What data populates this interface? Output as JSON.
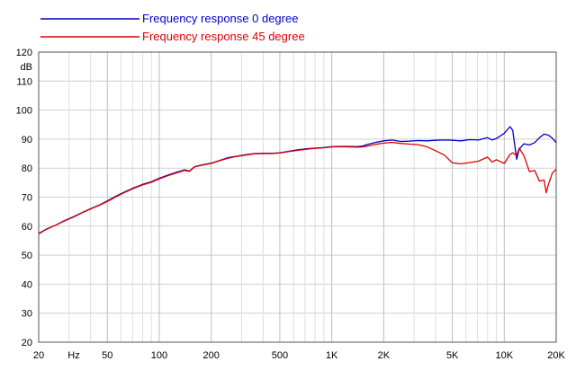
{
  "chart_data": {
    "type": "line",
    "xscale": "log",
    "xlim": [
      20,
      20000
    ],
    "ylim": [
      20,
      120
    ],
    "grid": true,
    "legend_position": "top-left",
    "ylabel": "dB",
    "xunit_label": "Hz",
    "x_major_ticks": [
      {
        "value": 20,
        "label": "20"
      },
      {
        "value": 50,
        "label": "50"
      },
      {
        "value": 100,
        "label": "100"
      },
      {
        "value": 200,
        "label": "200"
      },
      {
        "value": 500,
        "label": "500"
      },
      {
        "value": 1000,
        "label": "1K"
      },
      {
        "value": 2000,
        "label": "2K"
      },
      {
        "value": 5000,
        "label": "5K"
      },
      {
        "value": 10000,
        "label": "10K"
      },
      {
        "value": 20000,
        "label": "20K"
      }
    ],
    "x_minor_ticks": [
      30,
      40,
      60,
      70,
      80,
      90,
      300,
      400,
      600,
      700,
      800,
      900,
      3000,
      4000,
      6000,
      7000,
      8000,
      9000
    ],
    "y_ticks": [
      20,
      30,
      40,
      50,
      60,
      70,
      80,
      90,
      100,
      110,
      120
    ],
    "series": [
      {
        "name": "Frequency response 0 degree",
        "color": "#0000cc",
        "x": [
          20,
          22,
          25,
          28,
          32,
          36,
          40,
          45,
          50,
          56,
          63,
          71,
          80,
          90,
          100,
          112,
          125,
          140,
          150,
          160,
          180,
          200,
          225,
          250,
          280,
          315,
          355,
          400,
          450,
          500,
          560,
          630,
          710,
          800,
          900,
          1000,
          1120,
          1250,
          1400,
          1500,
          1600,
          1800,
          2000,
          2240,
          2500,
          2800,
          3150,
          3550,
          4000,
          4500,
          5000,
          5600,
          6300,
          7100,
          8000,
          8500,
          9000,
          10000,
          10800,
          11200,
          11800,
          12200,
          13000,
          14000,
          15000,
          16000,
          17000,
          18000,
          19000,
          20000
        ],
        "values": [
          57.5,
          58.9,
          60.3,
          61.8,
          63.3,
          64.8,
          66.0,
          67.3,
          68.7,
          70.3,
          71.8,
          73.2,
          74.4,
          75.3,
          76.5,
          77.6,
          78.5,
          79.4,
          79.0,
          80.5,
          81.2,
          81.7,
          82.7,
          83.6,
          84.1,
          84.6,
          85.0,
          85.1,
          85.1,
          85.3,
          85.8,
          86.3,
          86.7,
          86.9,
          87.1,
          87.4,
          87.5,
          87.5,
          87.4,
          87.6,
          88.1,
          88.9,
          89.4,
          89.7,
          89.2,
          89.3,
          89.5,
          89.4,
          89.6,
          89.7,
          89.6,
          89.4,
          89.8,
          89.7,
          90.5,
          89.7,
          90.2,
          92.0,
          94.3,
          93.0,
          83.0,
          86.5,
          88.4,
          88.0,
          88.8,
          90.5,
          91.7,
          91.4,
          90.3,
          88.8
        ]
      },
      {
        "name": "Frequency response 45 degree",
        "color": "#dd0000",
        "x": [
          20,
          22,
          25,
          28,
          32,
          36,
          40,
          45,
          50,
          56,
          63,
          71,
          80,
          90,
          100,
          112,
          125,
          140,
          150,
          160,
          180,
          200,
          225,
          250,
          280,
          315,
          355,
          400,
          450,
          500,
          560,
          630,
          710,
          800,
          900,
          1000,
          1120,
          1250,
          1400,
          1500,
          1600,
          1800,
          2000,
          2240,
          2500,
          2800,
          3150,
          3550,
          4000,
          4500,
          5000,
          5600,
          6300,
          7100,
          8000,
          8500,
          9000,
          10000,
          10800,
          11200,
          11800,
          12200,
          13000,
          14000,
          15000,
          16000,
          17000,
          17500,
          18000,
          19000,
          20000
        ],
        "values": [
          57.3,
          58.8,
          60.3,
          61.7,
          63.2,
          64.7,
          65.9,
          67.2,
          68.5,
          70.1,
          71.6,
          73.0,
          74.2,
          75.1,
          76.3,
          77.4,
          78.3,
          79.2,
          78.9,
          80.4,
          81.1,
          81.6,
          82.6,
          83.4,
          84.0,
          84.5,
          84.9,
          85.0,
          85.0,
          85.2,
          85.7,
          86.1,
          86.5,
          86.8,
          87.0,
          87.3,
          87.4,
          87.3,
          87.2,
          87.3,
          87.6,
          88.2,
          88.6,
          88.9,
          88.5,
          88.3,
          88.1,
          87.4,
          86.0,
          84.5,
          81.8,
          81.5,
          81.9,
          82.4,
          83.8,
          82.1,
          82.9,
          81.6,
          84.7,
          85.3,
          84.3,
          86.9,
          84.3,
          78.8,
          79.2,
          75.5,
          75.9,
          71.5,
          74.2,
          78.3,
          79.6
        ]
      }
    ]
  }
}
